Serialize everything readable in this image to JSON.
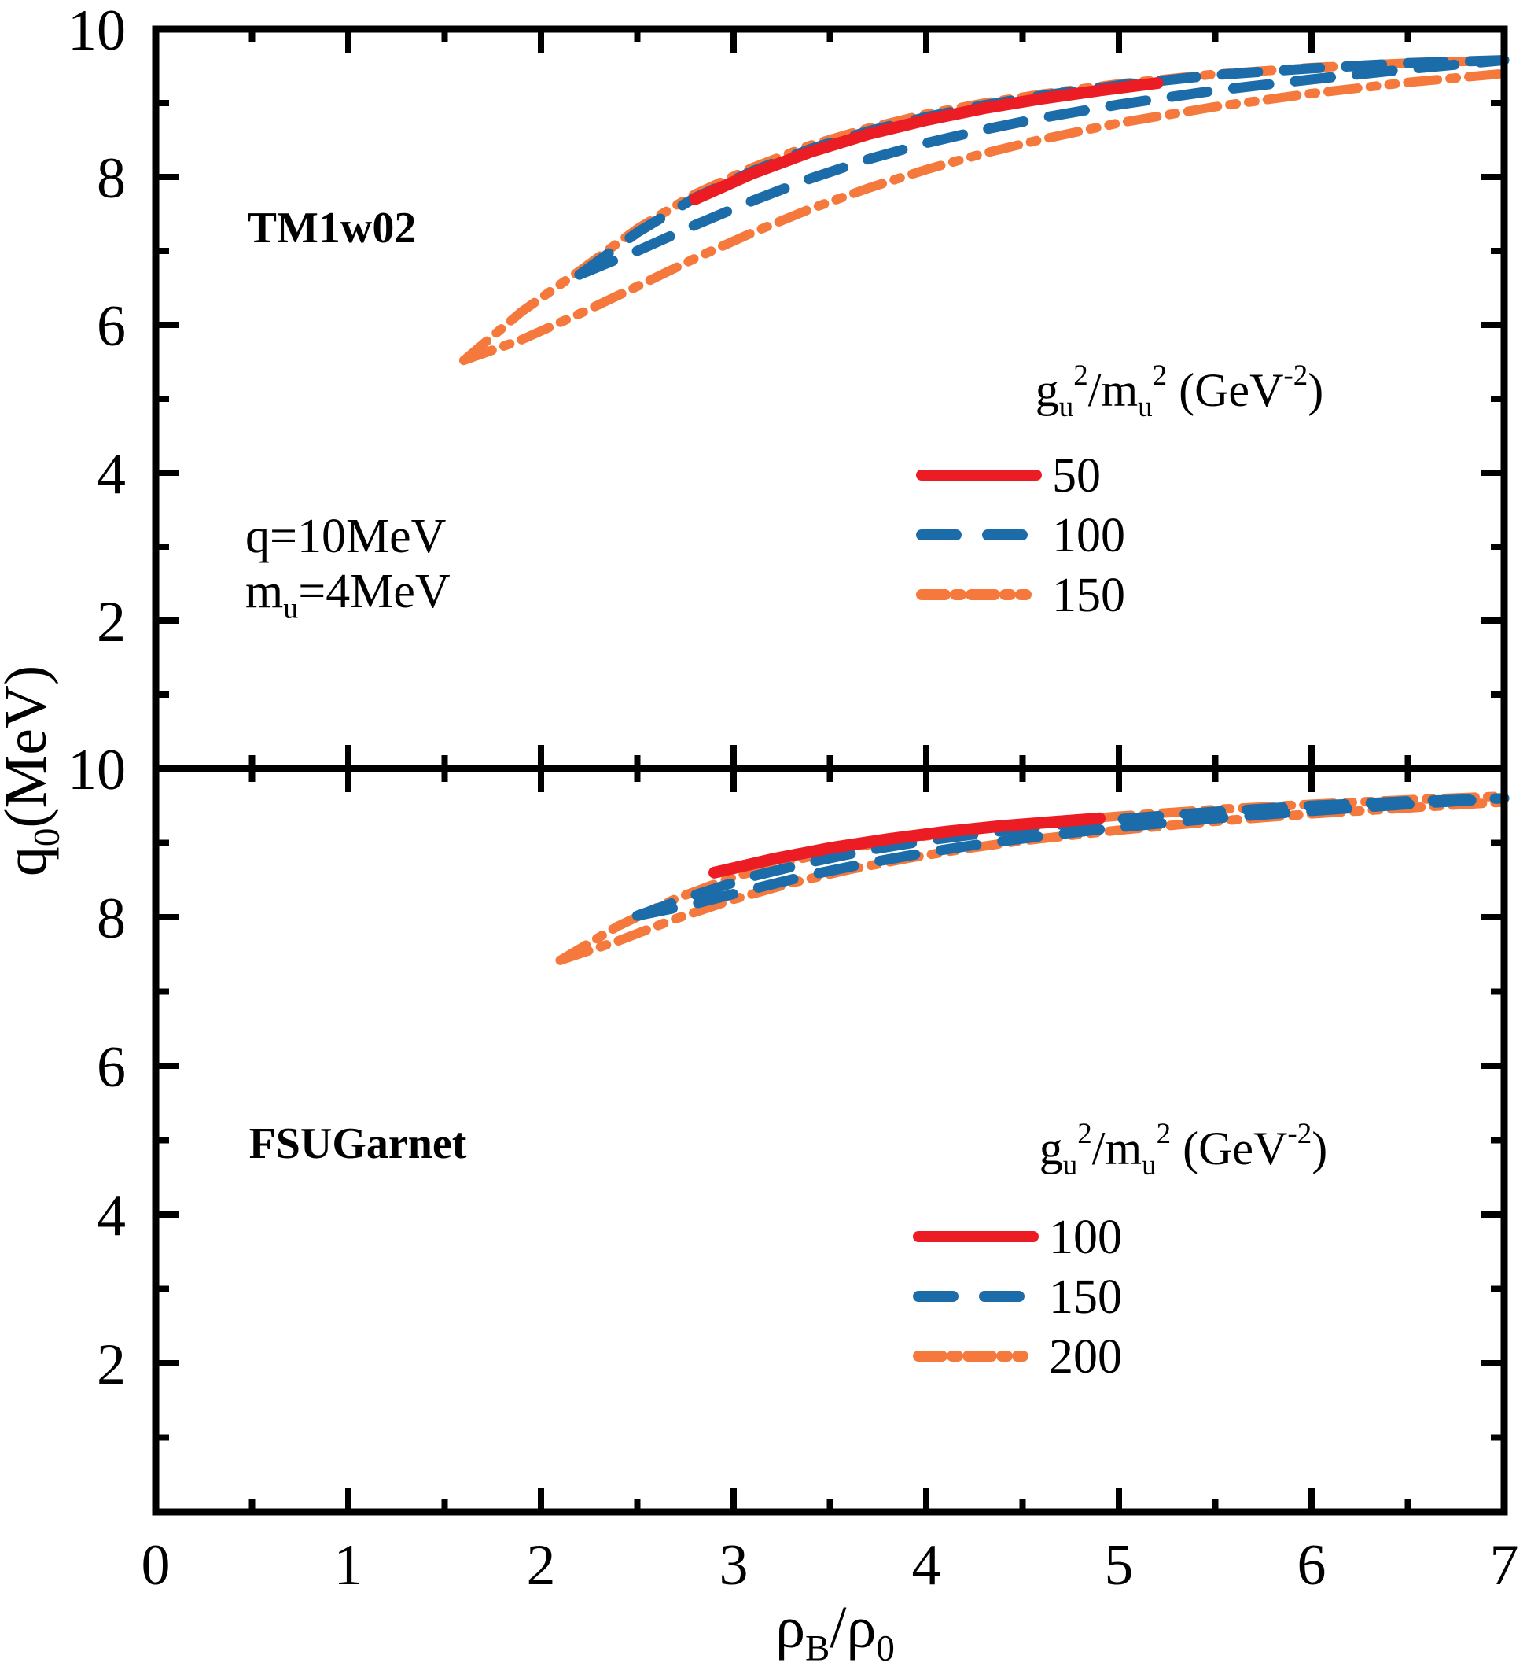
{
  "figure": {
    "background": "#ffffff",
    "axis_color": "#000000",
    "ylabel_parts": [
      {
        "t": "q"
      },
      {
        "t": "0",
        "s": "sub"
      },
      {
        "t": "(MeV)"
      }
    ],
    "xlabel_parts": [
      {
        "t": "ρ"
      },
      {
        "t": "B",
        "s": "sub"
      },
      {
        "t": "/ρ"
      },
      {
        "t": "0",
        "s": "sub"
      }
    ],
    "colors": {
      "red": "#EC1C24",
      "blue": "#1C6CA9",
      "orange": "#F5793C"
    }
  },
  "chart_data": [
    {
      "type": "line",
      "panel_label": "TM1w02",
      "annotations": {
        "q_label": "q=10MeV",
        "mu_parts": [
          {
            "t": "m"
          },
          {
            "t": "u",
            "s": "sub"
          },
          {
            "t": "=4MeV"
          }
        ]
      },
      "xlabel": "rho_B/rho_0",
      "ylabel": "q0 (MeV)",
      "xlim": [
        0,
        7
      ],
      "ylim": [
        0,
        10
      ],
      "x_major_ticks": [
        0,
        1,
        2,
        3,
        4,
        5,
        6,
        7
      ],
      "x_minor_ticks": [
        0.5,
        1.5,
        2.5,
        3.5,
        4.5,
        5.5,
        6.5
      ],
      "y_major_ticks": [
        2,
        4,
        6,
        8,
        10
      ],
      "y_minor_ticks": [
        1,
        3,
        5,
        7,
        9
      ],
      "grid": false,
      "legend": {
        "header_parts": [
          {
            "t": "g"
          },
          {
            "t": "u",
            "s": "sub"
          },
          {
            "t": "2",
            "s": "sup"
          },
          {
            "t": "/m"
          },
          {
            "t": "u",
            "s": "sub"
          },
          {
            "t": "2",
            "s": "sup"
          },
          {
            "t": " (GeV"
          },
          {
            "t": "-2",
            "s": "sup"
          },
          {
            "t": ")"
          }
        ],
        "position": "center-right",
        "entries": [
          {
            "label": "50",
            "color": "#EC1C24",
            "style": "solid"
          },
          {
            "label": "100",
            "color": "#1C6CA9",
            "style": "dashed"
          },
          {
            "label": "150",
            "color": "#F5793C",
            "style": "dashdot"
          }
        ]
      },
      "series": [
        {
          "name": "150-upper",
          "legend": "150",
          "color": "#F5793C",
          "style": "dashdot",
          "width": 12,
          "points": [
            [
              1.6,
              5.52
            ],
            [
              1.9,
              6.18
            ],
            [
              2.2,
              6.73
            ],
            [
              2.5,
              7.3
            ],
            [
              2.8,
              7.77
            ],
            [
              3.1,
              8.13
            ],
            [
              3.4,
              8.43
            ],
            [
              3.7,
              8.66
            ],
            [
              4.0,
              8.85
            ],
            [
              4.3,
              9.0
            ],
            [
              4.6,
              9.12
            ],
            [
              5.0,
              9.26
            ],
            [
              5.5,
              9.39
            ],
            [
              6.0,
              9.48
            ],
            [
              6.5,
              9.54
            ],
            [
              7.0,
              9.58
            ]
          ]
        },
        {
          "name": "150-lower",
          "legend": "150",
          "color": "#F5793C",
          "style": "dashdot",
          "width": 12,
          "points": [
            [
              1.6,
              5.52
            ],
            [
              1.9,
              5.8
            ],
            [
              2.2,
              6.15
            ],
            [
              2.5,
              6.52
            ],
            [
              2.8,
              6.9
            ],
            [
              3.1,
              7.25
            ],
            [
              3.4,
              7.57
            ],
            [
              3.7,
              7.85
            ],
            [
              4.0,
              8.1
            ],
            [
              4.3,
              8.32
            ],
            [
              4.6,
              8.51
            ],
            [
              5.0,
              8.73
            ],
            [
              5.5,
              8.95
            ],
            [
              6.0,
              9.13
            ],
            [
              6.5,
              9.28
            ],
            [
              7.0,
              9.4
            ]
          ]
        },
        {
          "name": "100-upper",
          "legend": "100",
          "color": "#1C6CA9",
          "style": "dashed",
          "width": 13,
          "points": [
            [
              2.2,
              6.68
            ],
            [
              2.5,
              7.25
            ],
            [
              2.8,
              7.72
            ],
            [
              3.1,
              8.08
            ],
            [
              3.4,
              8.38
            ],
            [
              3.7,
              8.62
            ],
            [
              4.0,
              8.81
            ],
            [
              4.3,
              8.97
            ],
            [
              4.6,
              9.1
            ],
            [
              5.0,
              9.24
            ],
            [
              5.5,
              9.38
            ],
            [
              6.0,
              9.47
            ],
            [
              6.5,
              9.54
            ],
            [
              7.0,
              9.58
            ]
          ]
        },
        {
          "name": "100-lower",
          "legend": "100",
          "color": "#1C6CA9",
          "style": "dashed",
          "width": 13,
          "points": [
            [
              2.2,
              6.68
            ],
            [
              2.5,
              7.0
            ],
            [
              2.8,
              7.35
            ],
            [
              3.1,
              7.68
            ],
            [
              3.4,
              7.98
            ],
            [
              3.7,
              8.24
            ],
            [
              4.0,
              8.46
            ],
            [
              4.3,
              8.64
            ],
            [
              4.6,
              8.8
            ],
            [
              5.0,
              8.98
            ],
            [
              5.5,
              9.17
            ],
            [
              6.0,
              9.32
            ],
            [
              6.5,
              9.46
            ],
            [
              7.0,
              9.58
            ]
          ]
        },
        {
          "name": "50",
          "legend": "50",
          "color": "#EC1C24",
          "style": "solid",
          "width": 15,
          "points": [
            [
              2.8,
              7.7
            ],
            [
              3.1,
              8.05
            ],
            [
              3.4,
              8.34
            ],
            [
              3.7,
              8.58
            ],
            [
              4.0,
              8.77
            ],
            [
              4.3,
              8.93
            ],
            [
              4.6,
              9.06
            ],
            [
              4.9,
              9.17
            ],
            [
              5.2,
              9.27
            ]
          ]
        }
      ]
    },
    {
      "type": "line",
      "panel_label": "FSUGarnet",
      "annotations": {},
      "xlabel": "rho_B/rho_0",
      "ylabel": "q0 (MeV)",
      "xlim": [
        0,
        7
      ],
      "ylim": [
        0,
        10
      ],
      "x_major_ticks": [
        0,
        1,
        2,
        3,
        4,
        5,
        6,
        7
      ],
      "x_minor_ticks": [
        0.5,
        1.5,
        2.5,
        3.5,
        4.5,
        5.5,
        6.5
      ],
      "y_major_ticks": [
        2,
        4,
        6,
        8,
        10
      ],
      "y_minor_ticks": [
        1,
        3,
        5,
        7,
        9
      ],
      "grid": false,
      "legend": {
        "header_parts": [
          {
            "t": "g"
          },
          {
            "t": "u",
            "s": "sub"
          },
          {
            "t": "2",
            "s": "sup"
          },
          {
            "t": "/m"
          },
          {
            "t": "u",
            "s": "sub"
          },
          {
            "t": "2",
            "s": "sup"
          },
          {
            "t": " (GeV"
          },
          {
            "t": "-2",
            "s": "sup"
          },
          {
            "t": ")"
          }
        ],
        "position": "center-right",
        "entries": [
          {
            "label": "100",
            "color": "#EC1C24",
            "style": "solid"
          },
          {
            "label": "150",
            "color": "#1C6CA9",
            "style": "dashed"
          },
          {
            "label": "200",
            "color": "#F5793C",
            "style": "dashdot"
          }
        ]
      },
      "series": [
        {
          "name": "200-upper",
          "legend": "200",
          "color": "#F5793C",
          "style": "dashdot",
          "width": 12,
          "points": [
            [
              2.1,
              7.42
            ],
            [
              2.4,
              7.88
            ],
            [
              2.7,
              8.25
            ],
            [
              3.0,
              8.54
            ],
            [
              3.3,
              8.76
            ],
            [
              3.6,
              8.93
            ],
            [
              3.9,
              9.06
            ],
            [
              4.2,
              9.16
            ],
            [
              4.5,
              9.25
            ],
            [
              5.0,
              9.36
            ],
            [
              5.5,
              9.45
            ],
            [
              6.0,
              9.52
            ],
            [
              6.5,
              9.58
            ],
            [
              7.0,
              9.63
            ]
          ]
        },
        {
          "name": "200-lower",
          "legend": "200",
          "color": "#F5793C",
          "style": "dashdot",
          "width": 12,
          "points": [
            [
              2.1,
              7.42
            ],
            [
              2.4,
              7.68
            ],
            [
              2.7,
              7.98
            ],
            [
              3.0,
              8.24
            ],
            [
              3.3,
              8.46
            ],
            [
              3.6,
              8.64
            ],
            [
              3.9,
              8.79
            ],
            [
              4.2,
              8.92
            ],
            [
              4.5,
              9.03
            ],
            [
              5.0,
              9.17
            ],
            [
              5.5,
              9.29
            ],
            [
              6.0,
              9.39
            ],
            [
              6.5,
              9.47
            ],
            [
              7.0,
              9.55
            ]
          ]
        },
        {
          "name": "150-upper",
          "legend": "150",
          "color": "#1C6CA9",
          "style": "dashed",
          "width": 13,
          "points": [
            [
              2.5,
              8.02
            ],
            [
              2.8,
              8.3
            ],
            [
              3.1,
              8.55
            ],
            [
              3.4,
              8.74
            ],
            [
              3.7,
              8.9
            ],
            [
              4.0,
              9.03
            ],
            [
              4.3,
              9.13
            ],
            [
              4.6,
              9.22
            ],
            [
              5.0,
              9.32
            ],
            [
              5.5,
              9.42
            ],
            [
              6.0,
              9.5
            ],
            [
              6.5,
              9.56
            ],
            [
              7.0,
              9.6
            ]
          ]
        },
        {
          "name": "150-lower",
          "legend": "150",
          "color": "#1C6CA9",
          "style": "dashed",
          "width": 13,
          "points": [
            [
              2.5,
              8.02
            ],
            [
              2.8,
              8.18
            ],
            [
              3.1,
              8.38
            ],
            [
              3.4,
              8.57
            ],
            [
              3.7,
              8.73
            ],
            [
              4.0,
              8.87
            ],
            [
              4.3,
              8.99
            ],
            [
              4.6,
              9.09
            ],
            [
              5.0,
              9.21
            ],
            [
              5.5,
              9.33
            ],
            [
              6.0,
              9.43
            ],
            [
              6.5,
              9.52
            ],
            [
              7.0,
              9.6
            ]
          ]
        },
        {
          "name": "100",
          "legend": "100",
          "color": "#EC1C24",
          "style": "solid",
          "width": 15,
          "points": [
            [
              2.9,
              8.6
            ],
            [
              3.2,
              8.78
            ],
            [
              3.5,
              8.93
            ],
            [
              3.8,
              9.05
            ],
            [
              4.1,
              9.15
            ],
            [
              4.4,
              9.23
            ],
            [
              4.65,
              9.28
            ],
            [
              4.9,
              9.33
            ]
          ]
        }
      ]
    }
  ]
}
